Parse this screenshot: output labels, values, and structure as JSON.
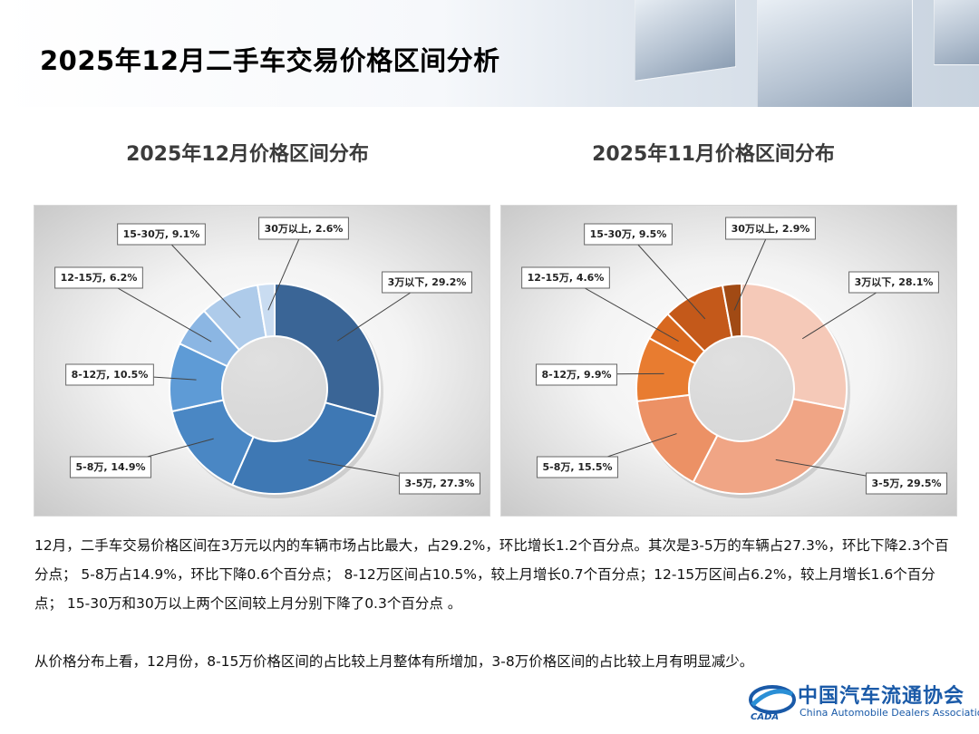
{
  "header": {
    "title": "2025年12月二手车交易价格区间分析"
  },
  "chart_data": [
    {
      "type": "pie",
      "subtype": "donut",
      "title": "2025年12月价格区间分布",
      "categories": [
        "3万以下",
        "3-5万",
        "5-8万",
        "8-12万",
        "12-15万",
        "15-30万",
        "30万以上"
      ],
      "values": [
        29.2,
        27.3,
        14.9,
        10.5,
        6.2,
        9.1,
        2.6
      ],
      "labels": [
        "3万以下, 29.2%",
        "3-5万, 27.3%",
        "5-8万, 14.9%",
        "8-12万, 10.5%",
        "12-15万, 6.2%",
        "15-30万, 9.1%",
        "30万以上, 2.6%"
      ],
      "colors": [
        "#3a6596",
        "#3e78b4",
        "#4a87c4",
        "#5e9bd6",
        "#8bb6e3",
        "#aecbea",
        "#c9dcf1"
      ]
    },
    {
      "type": "pie",
      "subtype": "donut",
      "title": "2025年11月价格区间分布",
      "categories": [
        "3万以下",
        "3-5万",
        "5-8万",
        "8-12万",
        "12-15万",
        "15-30万",
        "30万以上"
      ],
      "values": [
        28.1,
        29.5,
        15.5,
        9.9,
        4.6,
        9.5,
        2.9
      ],
      "labels": [
        "3万以下, 28.1%",
        "3-5万, 29.5%",
        "5-8万, 15.5%",
        "8-12万, 9.9%",
        "12-15万, 4.6%",
        "15-30万, 9.5%",
        "30万以上, 2.9%"
      ],
      "colors": [
        "#f5c9b8",
        "#f0a585",
        "#ec9165",
        "#e87c30",
        "#d8681f",
        "#c4591a",
        "#a14a14"
      ]
    }
  ],
  "body": {
    "paragraph1": "12月，二手车交易价格区间在3万元以内的车辆市场占比最大，占29.2%，环比增长1.2个百分点。其次是3-5万的车辆占27.3%，环比下降2.3个百分点； 5-8万占14.9%，环比下降0.6个百分点； 8-12万区间占10.5%，较上月增长0.7个百分点；12-15万区间占6.2%，较上月增长1.6个百分点； 15-30万和30万以上两个区间较上月分别下降了0.3个百分点 。",
    "paragraph2": "从价格分布上看，12月份，8-15万价格区间的占比较上月整体有所增加，3-8万价格区间的占比较上月有明显减少。"
  },
  "footer": {
    "org_name": "中国汽车流通协会",
    "org_name_en": "China Automobile Dealers Association",
    "logo_text": "CADA"
  }
}
